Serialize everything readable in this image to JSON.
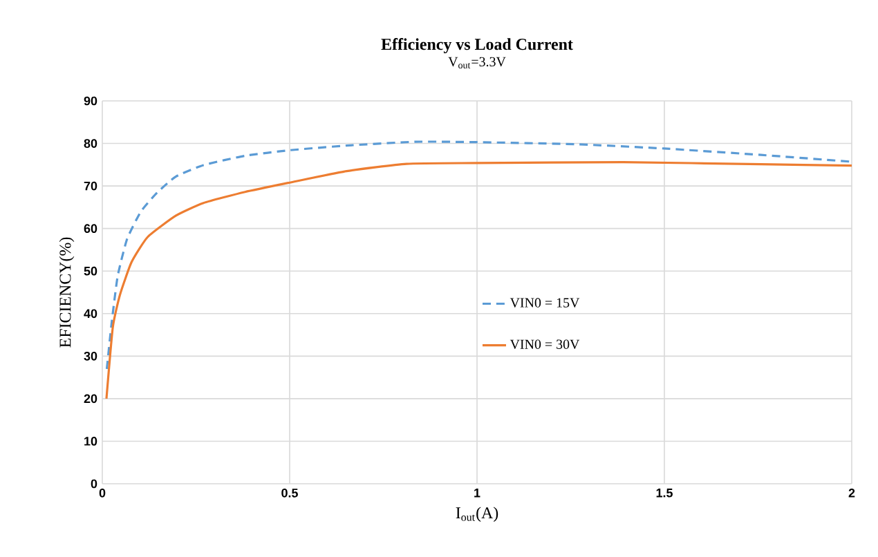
{
  "chart_data": {
    "type": "line",
    "title": "Efficiency vs Load Current",
    "subtitle": "V$_{out}$=3.3V",
    "xlabel": "I$_{out}$(A)",
    "ylabel": "EFICIENCY(%)",
    "xlim": [
      0,
      2
    ],
    "xticks": [
      0,
      0.5,
      1,
      1.5,
      2
    ],
    "ylim": [
      0,
      90
    ],
    "yticks": [
      0,
      10,
      20,
      30,
      40,
      50,
      60,
      70,
      80,
      90
    ],
    "grid": true,
    "legend": "right",
    "series": [
      {
        "name": "VIN0 = 15V",
        "color": "#5b9bd5",
        "line_style": "dashed",
        "x": [
          0.012,
          0.025,
          0.041,
          0.066,
          0.103,
          0.146,
          0.196,
          0.27,
          0.381,
          0.5,
          0.652,
          0.837,
          1,
          1.267,
          1.5,
          1.758,
          2
        ],
        "values": [
          27,
          37.9,
          48.8,
          57.5,
          64,
          68.4,
          72.2,
          74.9,
          77.1,
          78.4,
          79.5,
          80.4,
          80.3,
          79.8,
          78.8,
          77.3,
          75.7
        ]
      },
      {
        "name": "VIN0 = 30V",
        "color": "#ed7d31",
        "line_style": "solid",
        "x": [
          0.011,
          0.028,
          0.047,
          0.078,
          0.121,
          0.196,
          0.27,
          0.381,
          0.5,
          0.652,
          0.812,
          1,
          1.39,
          1.758,
          2
        ],
        "values": [
          20,
          36.8,
          44.4,
          52.1,
          58,
          63,
          66,
          68.6,
          70.8,
          73.5,
          75.2,
          75.4,
          75.6,
          75.1,
          74.8
        ]
      }
    ]
  }
}
